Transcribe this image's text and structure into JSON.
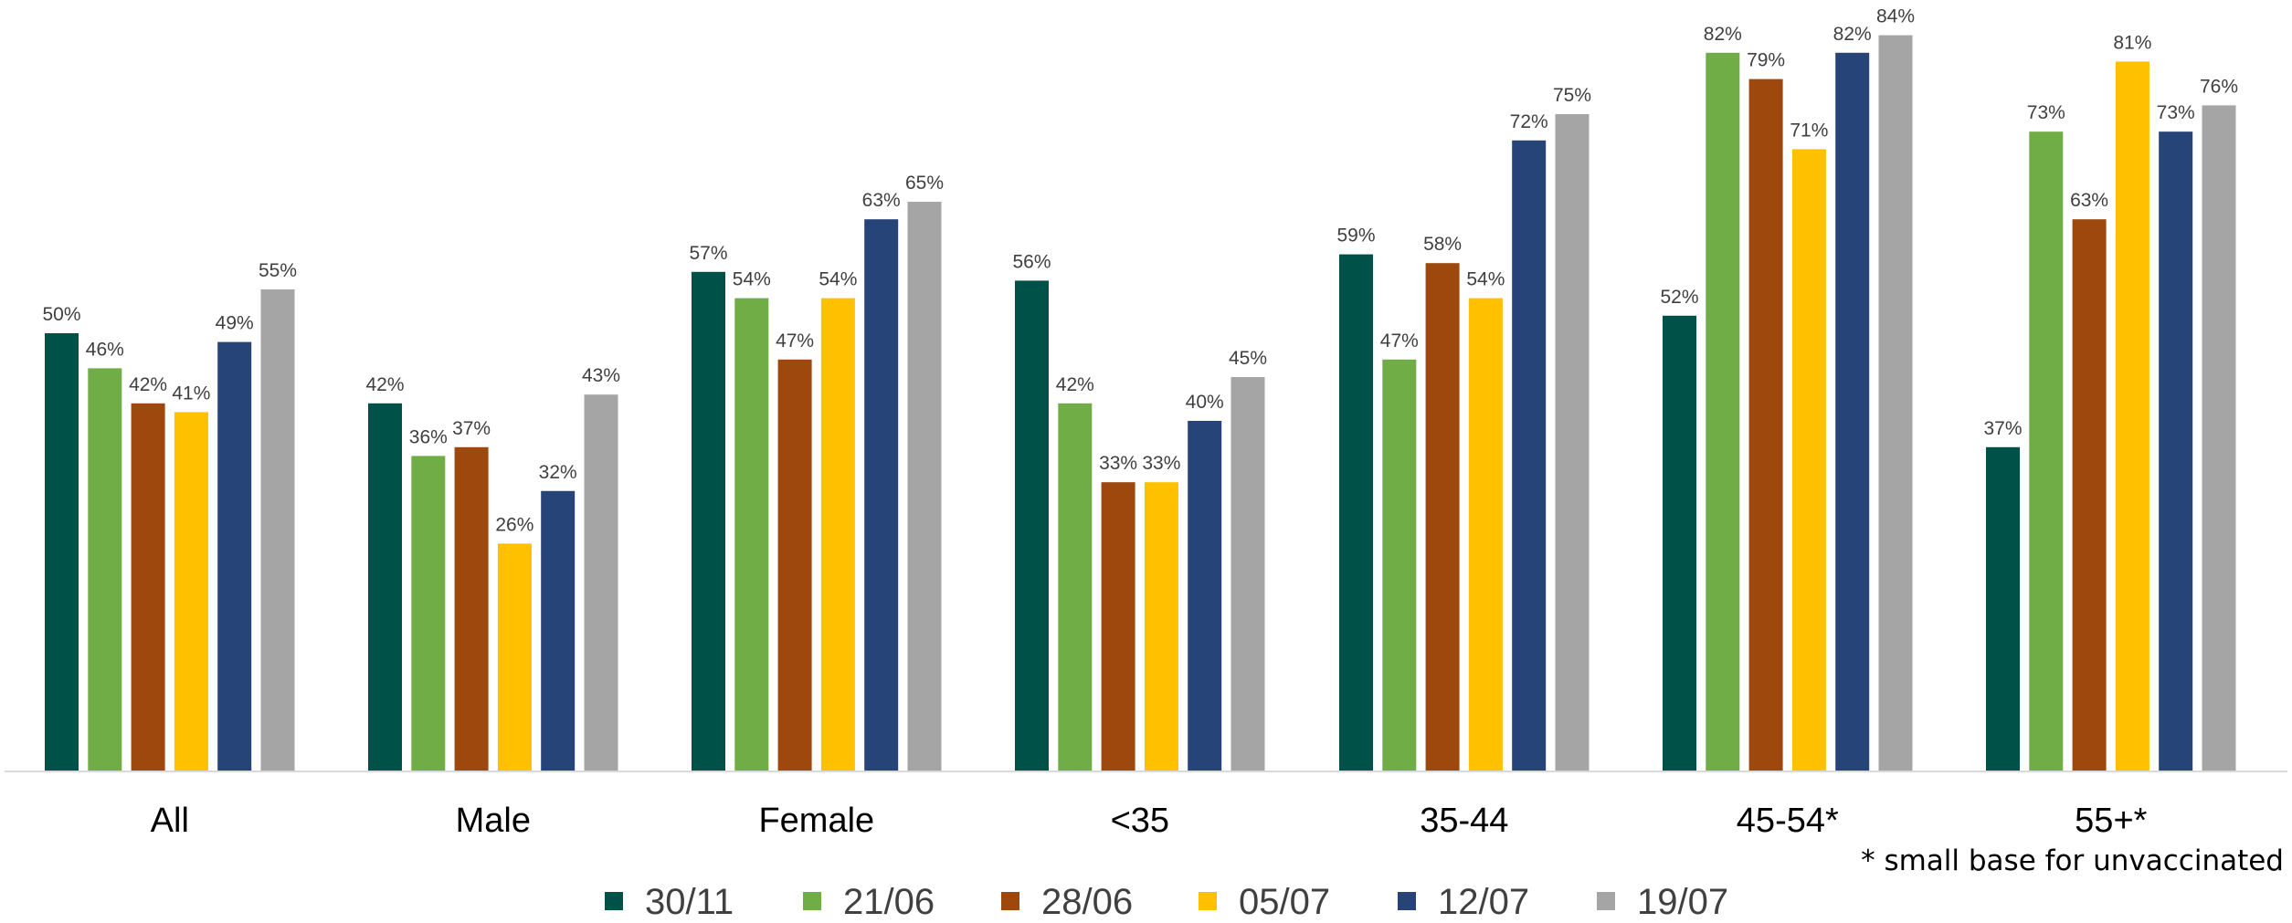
{
  "chart_data": {
    "type": "bar",
    "categories": [
      "All",
      "Male",
      "Female",
      "<35",
      "35-44",
      "45-54*",
      "55+*"
    ],
    "series": [
      {
        "name": "30/11",
        "color": "#005248",
        "values": [
          50,
          42,
          57,
          56,
          59,
          52,
          37
        ]
      },
      {
        "name": "21/06",
        "color": "#70AD47",
        "values": [
          46,
          36,
          54,
          42,
          47,
          82,
          73
        ]
      },
      {
        "name": "28/06",
        "color": "#9E480E",
        "values": [
          42,
          37,
          47,
          33,
          58,
          79,
          63
        ]
      },
      {
        "name": "05/07",
        "color": "#FFC000",
        "values": [
          41,
          26,
          54,
          33,
          54,
          71,
          81
        ]
      },
      {
        "name": "12/07",
        "color": "#264478",
        "values": [
          49,
          32,
          63,
          40,
          72,
          82,
          73
        ]
      },
      {
        "name": "19/07",
        "color": "#A5A5A5",
        "values": [
          55,
          43,
          65,
          45,
          75,
          84,
          76
        ]
      }
    ],
    "value_suffix": "%",
    "ylim": [
      0,
      88
    ],
    "legend_position": "bottom",
    "grid": false,
    "footnote": "* small base for unvaccinated"
  }
}
